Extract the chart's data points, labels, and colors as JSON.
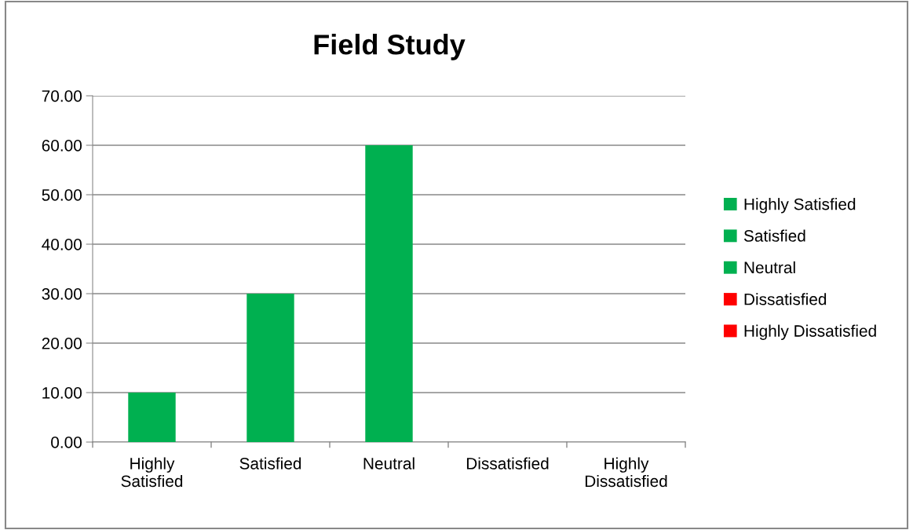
{
  "chart_data": {
    "type": "bar",
    "title": "Field Study",
    "categories": [
      "Highly Satisfied",
      "Satisfied",
      "Neutral",
      "Dissatisfied",
      "Highly Dissatisfied"
    ],
    "series": [
      {
        "name": "Highly Satisfied",
        "color": "#00b050",
        "values": [
          10,
          null,
          null,
          null,
          null
        ]
      },
      {
        "name": "Satisfied",
        "color": "#00b050",
        "values": [
          null,
          30,
          null,
          null,
          null
        ]
      },
      {
        "name": "Neutral",
        "color": "#00b050",
        "values": [
          null,
          null,
          60,
          null,
          null
        ]
      },
      {
        "name": "Dissatisfied",
        "color": "#ff0000",
        "values": [
          null,
          null,
          null,
          0,
          null
        ]
      },
      {
        "name": "Highly Dissatisfied",
        "color": "#ff0000",
        "values": [
          null,
          null,
          null,
          null,
          0
        ]
      }
    ],
    "ylim": [
      0,
      70
    ],
    "yticks": [
      {
        "value": 0,
        "label": "0.00"
      },
      {
        "value": 10,
        "label": "10.00"
      },
      {
        "value": 20,
        "label": "20.00"
      },
      {
        "value": 30,
        "label": "30.00"
      },
      {
        "value": 40,
        "label": "40.00"
      },
      {
        "value": 50,
        "label": "50.00"
      },
      {
        "value": 60,
        "label": "60.00"
      },
      {
        "value": 70,
        "label": "70.00"
      }
    ],
    "grid": "y",
    "legend": "right"
  }
}
